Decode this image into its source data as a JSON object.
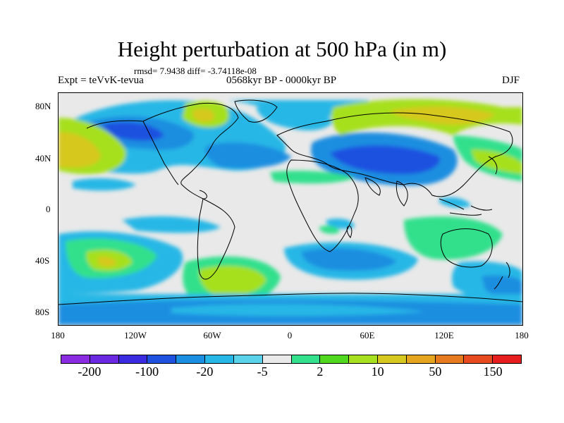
{
  "title": "Height perturbation at 500 hPa (in m)",
  "stats_text": "rmsd= 7.9438 diff= -3.74118e-08",
  "experiment_text": "Expt = teVvK-tevua",
  "period_text": "0568kyr BP - 0000kyr BP",
  "season": "DJF",
  "lat_ticks": [
    "80N",
    "40N",
    "0",
    "40S",
    "80S"
  ],
  "lon_ticks": [
    "180",
    "120W",
    "60W",
    "0",
    "60E",
    "120E",
    "180"
  ],
  "colorbar": {
    "colors": [
      "#8a2be2",
      "#6a28e0",
      "#3b2be0",
      "#1f51e0",
      "#1a8ee0",
      "#27b7e6",
      "#5ad3ea",
      "#e9e9e9",
      "#33e08c",
      "#4fd81e",
      "#a6e01f",
      "#d6c81e",
      "#e6a51e",
      "#e67a1e",
      "#e64a1e",
      "#e61e1e"
    ],
    "labels": [
      "-200",
      "-100",
      "-20",
      "-5",
      "2",
      "10",
      "50",
      "150"
    ]
  }
}
